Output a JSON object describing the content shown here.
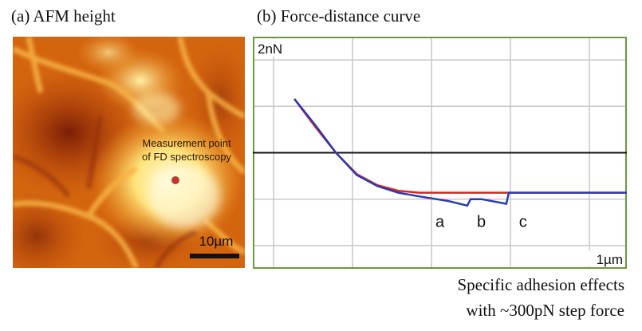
{
  "panel_a": {
    "title": "(a) AFM height",
    "annotation_line1": "Measurement point",
    "annotation_line2": "of FD spectroscopy",
    "scale_label": "10µm",
    "colors": {
      "dark": "#7a1e06",
      "mid": "#d9640c",
      "bright": "#fff4b0",
      "marker": "#c0392b"
    }
  },
  "panel_b": {
    "title": "(b) Force-distance curve",
    "y_scale_label": "2nN",
    "x_scale_label": "1µm",
    "step_labels": [
      "a",
      "b",
      "c"
    ],
    "colors": {
      "approach": "#e02020",
      "retract": "#2a3cb0",
      "baseline": "#111111",
      "grid": "#c8c8c8",
      "frame": "#6a9a3a"
    }
  },
  "chart_data": {
    "type": "line",
    "title": "(b) Force-distance curve",
    "xlabel": "",
    "ylabel": "",
    "xlim": [
      0,
      4.5
    ],
    "ylim": [
      -1.25,
      1.25
    ],
    "grid": true,
    "scale_bars": {
      "y": "2nN",
      "x": "1µm"
    },
    "series": [
      {
        "x": [
          0.5,
          0.75,
          1.0,
          1.25,
          1.5,
          1.75,
          2.0,
          4.5
        ],
        "y": [
          0.58,
          0.28,
          0.0,
          -0.23,
          -0.35,
          -0.41,
          -0.43,
          -0.43
        ]
      },
      {
        "x": [
          0.5,
          0.75,
          1.0,
          1.25,
          1.5,
          1.75,
          2.0,
          2.35,
          2.58,
          2.62,
          2.75,
          3.05,
          3.08,
          4.5
        ],
        "y": [
          0.58,
          0.3,
          0.0,
          -0.24,
          -0.36,
          -0.43,
          -0.47,
          -0.52,
          -0.57,
          -0.5,
          -0.5,
          -0.55,
          -0.43,
          -0.43
        ]
      },
      {
        "x": [
          0,
          4.5
        ],
        "y": [
          0,
          0
        ]
      }
    ],
    "annotations": [
      {
        "text": "a",
        "x": 2.25
      },
      {
        "text": "b",
        "x": 2.75
      },
      {
        "text": "c",
        "x": 3.25
      }
    ]
  },
  "caption": {
    "line1": "Specific adhesion effects",
    "line2": "with ~300pN step force"
  }
}
